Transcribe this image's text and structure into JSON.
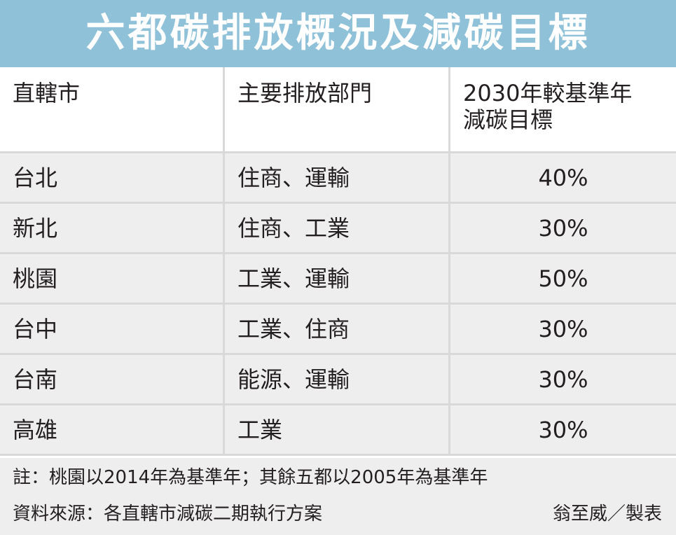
{
  "title": "六都碳排放概況及減碳目標",
  "table": {
    "headers": {
      "city": "直轄市",
      "sector": "主要排放部門",
      "target_line1": "2030年較基準年",
      "target_line2": "減碳目標"
    },
    "rows": [
      {
        "city": "台北",
        "sector": "住商、運輸",
        "target": "40%"
      },
      {
        "city": "新北",
        "sector": "住商、工業",
        "target": "30%"
      },
      {
        "city": "桃園",
        "sector": "工業、運輸",
        "target": "50%"
      },
      {
        "city": "台中",
        "sector": "工業、住商",
        "target": "30%"
      },
      {
        "city": "台南",
        "sector": "能源、運輸",
        "target": "30%"
      },
      {
        "city": "高雄",
        "sector": "工業",
        "target": "30%"
      }
    ]
  },
  "footer": {
    "note": "註：桃園以2014年為基準年；其餘五都以2005年為基準年",
    "source": "資料來源：各直轄市減碳二期執行方案",
    "credit": "翁至威／製表"
  },
  "colors": {
    "banner": "#8fc1d8",
    "row_background": "#eeeeee",
    "divider": "#d9d9d9"
  }
}
